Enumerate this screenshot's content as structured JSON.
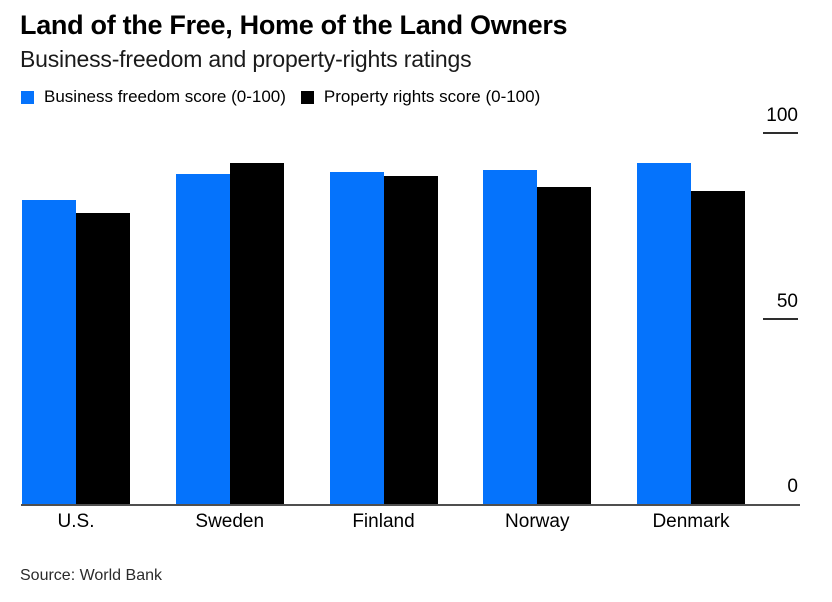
{
  "header": {
    "title": "Land of the Free, Home of the Land Owners",
    "subtitle": "Business-freedom and property-rights ratings"
  },
  "source": "Source: World Bank",
  "colors": {
    "series_blue": "#0573fc",
    "series_black": "#000000",
    "axis_line": "#4f4f4f",
    "tick": "#2e2e2e",
    "text": "#000000",
    "background": "#ffffff"
  },
  "chart_data": {
    "type": "bar",
    "categories": [
      "U.S.",
      "Sweden",
      "Finland",
      "Norway",
      "Denmark"
    ],
    "series": [
      {
        "name": "Business freedom score (0-100)",
        "color": "#0573fc",
        "values": [
          82,
          89,
          89.5,
          90,
          92
        ]
      },
      {
        "name": "Property rights score (0-100)",
        "color": "#000000",
        "values": [
          78.5,
          92,
          88.5,
          85.5,
          84.5
        ]
      }
    ],
    "title": "Land of the Free, Home of the Land Owners",
    "subtitle": "Business-freedom and property-rights ratings",
    "xlabel": "",
    "ylabel": "",
    "ylim": [
      0,
      100
    ],
    "yticks": [
      0,
      50,
      100
    ],
    "y_axis_side": "right",
    "grid": false,
    "legend_position": "top-left",
    "source": "Source: World Bank"
  }
}
